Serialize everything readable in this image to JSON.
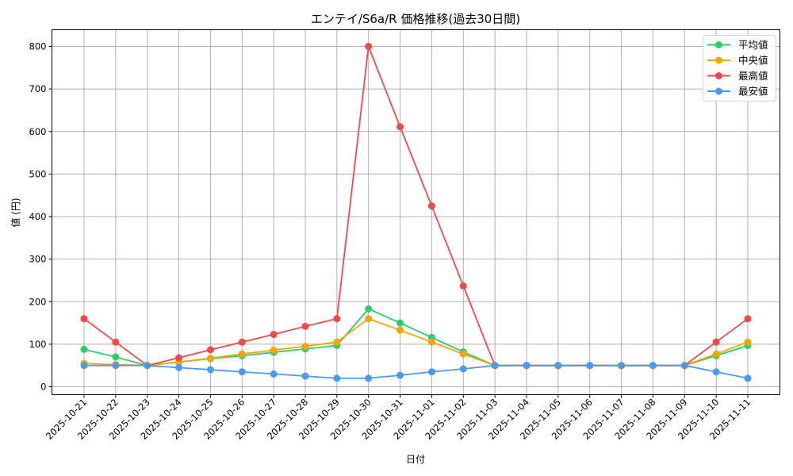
{
  "chart_data": {
    "type": "line",
    "title": "エンテイ/S6a/R 価格推移(過去30日間)",
    "xlabel": "日付",
    "ylabel": "値 (円)",
    "ylim": [
      -20,
      840
    ],
    "yticks": [
      0,
      100,
      200,
      300,
      400,
      500,
      600,
      700,
      800
    ],
    "grid": true,
    "legend_position": "upper right",
    "categories": [
      "2025-10-21",
      "2025-10-22",
      "2025-10-23",
      "2025-10-24",
      "2025-10-25",
      "2025-10-26",
      "2025-10-27",
      "2025-10-28",
      "2025-10-29",
      "2025-10-30",
      "2025-10-31",
      "2025-11-01",
      "2025-11-02",
      "2025-11-03",
      "2025-11-04",
      "2025-11-05",
      "2025-11-06",
      "2025-11-07",
      "2025-11-08",
      "2025-11-09",
      "2025-11-10",
      "2025-11-11"
    ],
    "series": [
      {
        "name": "平均値",
        "color": "#2ecc71",
        "values": [
          88,
          70,
          50,
          58,
          66,
          73,
          81,
          89,
          97,
          183,
          150,
          116,
          82,
          50,
          50,
          50,
          50,
          50,
          50,
          50,
          73,
          97
        ]
      },
      {
        "name": "中央値",
        "color": "#f5a500",
        "values": [
          55,
          52,
          50,
          58,
          67,
          77,
          86,
          95,
          105,
          160,
          133,
          105,
          77,
          50,
          50,
          50,
          50,
          50,
          50,
          50,
          77,
          105
        ]
      },
      {
        "name": "最高値",
        "color": "#f44848",
        "values": [
          160,
          105,
          50,
          68,
          87,
          105,
          123,
          142,
          160,
          800,
          611,
          425,
          237,
          50,
          50,
          50,
          50,
          50,
          50,
          50,
          105,
          160
        ]
      },
      {
        "name": "最安値",
        "color": "#4a9af5",
        "values": [
          50,
          50,
          50,
          45,
          40,
          35,
          30,
          25,
          20,
          20,
          27,
          35,
          42,
          50,
          50,
          50,
          50,
          50,
          50,
          50,
          35,
          20
        ]
      }
    ]
  }
}
